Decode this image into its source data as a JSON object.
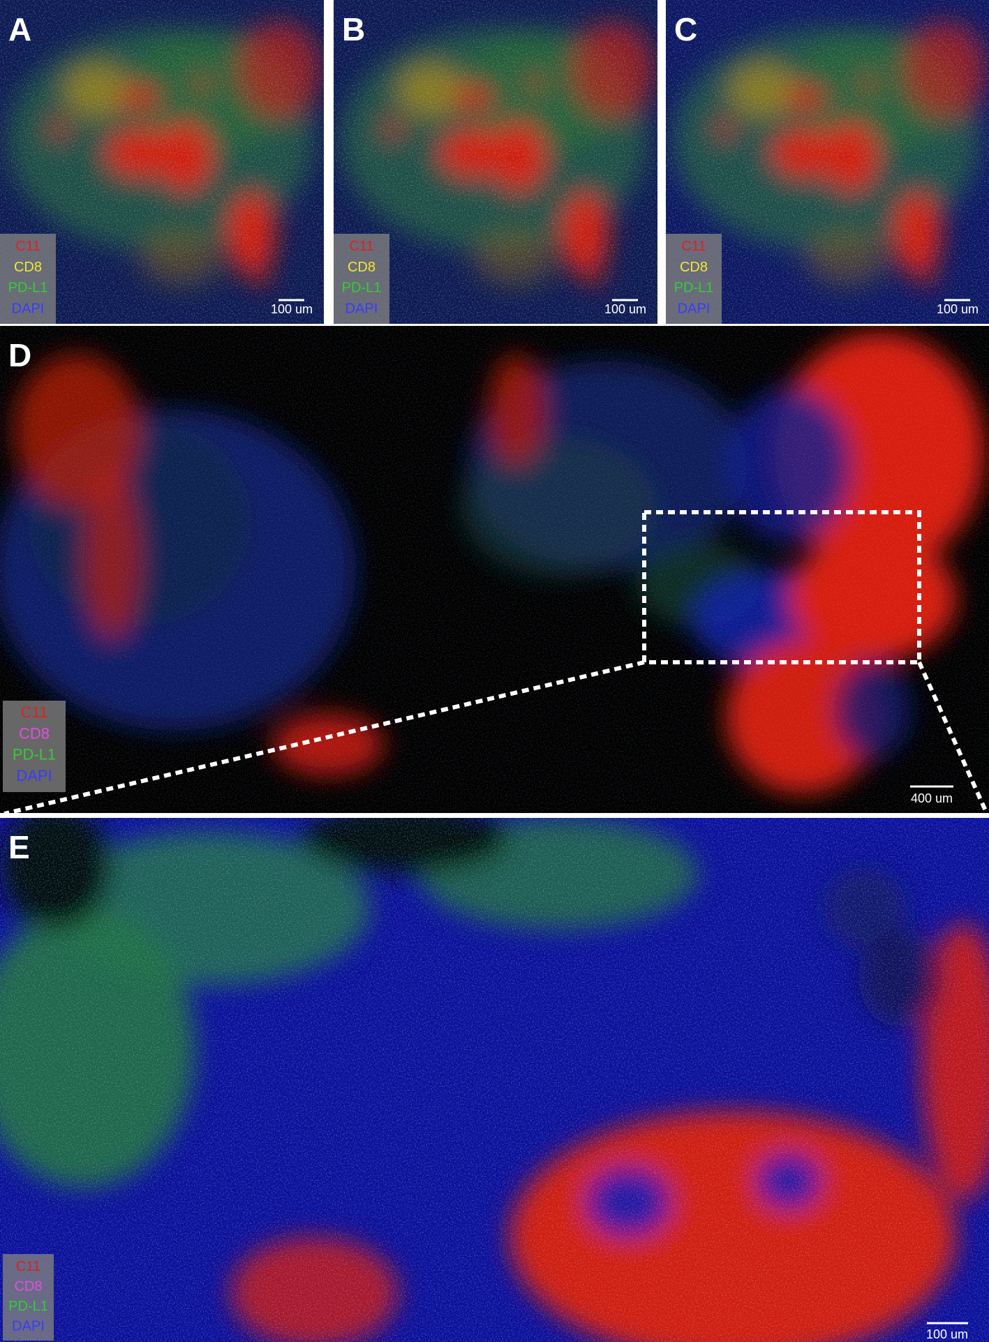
{
  "panels": [
    {
      "label": "A",
      "legend": [
        {
          "text": "C11",
          "color": "#e02020"
        },
        {
          "text": "CD8",
          "color": "#f2e830"
        },
        {
          "text": "PD-L1",
          "color": "#30d030"
        },
        {
          "text": "DAPI",
          "color": "#3a3aff"
        }
      ],
      "scale_bar": "100 um"
    },
    {
      "label": "B",
      "legend": [
        {
          "text": "C11",
          "color": "#e02020"
        },
        {
          "text": "CD8",
          "color": "#f2e830"
        },
        {
          "text": "PD-L1",
          "color": "#30d030"
        },
        {
          "text": "DAPI",
          "color": "#3a3aff"
        }
      ],
      "scale_bar": "100 um"
    },
    {
      "label": "C",
      "legend": [
        {
          "text": "C11",
          "color": "#e02020"
        },
        {
          "text": "CD8",
          "color": "#f2e830"
        },
        {
          "text": "PD-L1",
          "color": "#30d030"
        },
        {
          "text": "DAPI",
          "color": "#3a3aff"
        }
      ],
      "scale_bar": "100 um"
    },
    {
      "label": "D",
      "legend": [
        {
          "text": "C11",
          "color": "#e02020"
        },
        {
          "text": "CD8",
          "color": "#e050e0"
        },
        {
          "text": "PD-L1",
          "color": "#30d030"
        },
        {
          "text": "DAPI",
          "color": "#3a3aff"
        }
      ],
      "scale_bar": "400 um"
    },
    {
      "label": "E",
      "legend": [
        {
          "text": "C11",
          "color": "#e02020"
        },
        {
          "text": "CD8",
          "color": "#e050e0"
        },
        {
          "text": "PD-L1",
          "color": "#30d030"
        },
        {
          "text": "DAPI",
          "color": "#3a3aff"
        }
      ],
      "scale_bar": "100 um"
    }
  ]
}
